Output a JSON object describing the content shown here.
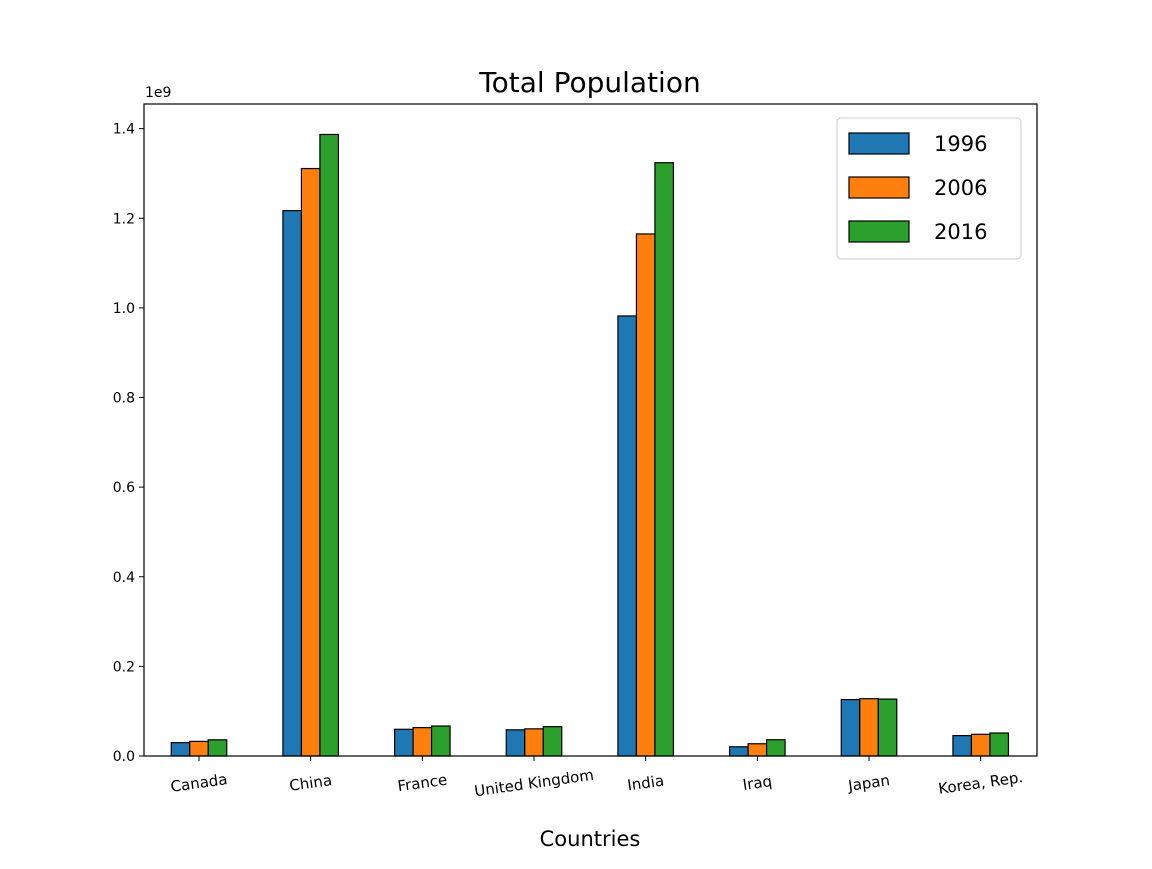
{
  "chart_data": {
    "type": "bar",
    "title": "Total Population",
    "xlabel": "Countries",
    "ylabel": "",
    "y_offset_label": "1e9",
    "ylim": [
      0,
      1.455
    ],
    "yticks": [
      0.0,
      0.2,
      0.4,
      0.6,
      0.8,
      1.0,
      1.2,
      1.4
    ],
    "ytick_labels": [
      "0.0",
      "0.2",
      "0.4",
      "0.6",
      "0.8",
      "1.0",
      "1.2",
      "1.4"
    ],
    "categories": [
      "Canada",
      "China",
      "France",
      "United Kingdom",
      "India",
      "Iraq",
      "Japan",
      "Korea, Rep."
    ],
    "series": [
      {
        "name": "1996",
        "color": "#1f77b4",
        "values": [
          0.0298,
          1.217,
          0.0596,
          0.0584,
          0.982,
          0.0206,
          0.1259,
          0.0455
        ]
      },
      {
        "name": "2006",
        "color": "#ff7f0e",
        "values": [
          0.0326,
          1.311,
          0.0633,
          0.0606,
          1.165,
          0.0273,
          0.1279,
          0.0484
        ]
      },
      {
        "name": "2016",
        "color": "#2ca02c",
        "values": [
          0.0361,
          1.387,
          0.0669,
          0.0655,
          1.324,
          0.0363,
          0.127,
          0.0513
        ]
      }
    ],
    "legend_position": "upper right",
    "grid": false
  }
}
